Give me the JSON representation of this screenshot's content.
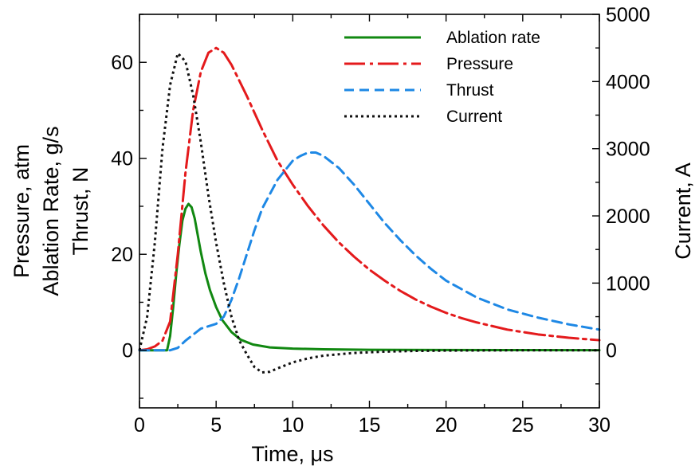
{
  "chart_data": {
    "type": "line",
    "title": "",
    "xlabel": "Time, μs",
    "ylabel_left": [
      "Pressure, atm",
      "Ablation Rate, g/s",
      "Thrust, N"
    ],
    "ylabel_right": "Current, A",
    "xlim": [
      0,
      30
    ],
    "ylim_left": [
      -12,
      70
    ],
    "ylim_right": [
      -857,
      5000
    ],
    "x_ticks": [
      "0",
      "5",
      "10",
      "15",
      "20",
      "25",
      "30"
    ],
    "y_left_ticks": [
      "0",
      "20",
      "40",
      "60"
    ],
    "y_right_ticks": [
      "0",
      "1000",
      "2000",
      "3000",
      "4000",
      "5000"
    ],
    "grid": false,
    "legend_position": "top-right",
    "series": [
      {
        "name": "Ablation rate",
        "axis": "left",
        "color": "#118811",
        "style": "solid",
        "x": [
          0,
          1.8,
          2.0,
          2.2,
          2.4,
          2.6,
          2.8,
          3.0,
          3.2,
          3.4,
          3.6,
          3.8,
          4.0,
          4.3,
          4.6,
          5.0,
          5.4,
          6.0,
          6.6,
          7.4,
          8.5,
          10,
          12,
          15,
          20,
          25,
          30
        ],
        "y": [
          0,
          0,
          3,
          9,
          16,
          22,
          27,
          29.5,
          30.5,
          29.8,
          27.5,
          24,
          20.5,
          16,
          12.5,
          9,
          6.3,
          3.8,
          2.2,
          1.2,
          0.6,
          0.35,
          0.2,
          0.1,
          0.05,
          0.03,
          0.02
        ]
      },
      {
        "name": "Pressure",
        "axis": "left",
        "color": "#e41a1c",
        "style": "dash-dot",
        "x": [
          0,
          0.5,
          1.0,
          1.5,
          2.0,
          2.5,
          3.0,
          3.5,
          4.0,
          4.5,
          5.0,
          5.5,
          6.0,
          7.0,
          8.0,
          9.0,
          10.0,
          11.0,
          12.0,
          13.0,
          14.0,
          15.0,
          16.0,
          17.0,
          18.0,
          19.0,
          20.0,
          21.0,
          22.0,
          24.0,
          26.0,
          28.0,
          30.0
        ],
        "y": [
          0,
          0.2,
          0.8,
          2,
          6,
          20,
          37,
          50,
          58,
          62,
          63,
          62,
          59.5,
          53,
          46,
          39.5,
          34.5,
          30,
          26,
          22.5,
          19.5,
          16.8,
          14.5,
          12.4,
          10.6,
          9.1,
          7.8,
          6.7,
          5.8,
          4.3,
          3.3,
          2.6,
          2.1
        ]
      },
      {
        "name": "Thrust",
        "axis": "left",
        "color": "#1e88e5",
        "style": "dash",
        "x": [
          0,
          2.0,
          2.5,
          3.0,
          4.0,
          5.0,
          5.5,
          6.0,
          6.5,
          7.0,
          7.5,
          8.0,
          9.0,
          10.0,
          10.5,
          11.0,
          11.5,
          12.0,
          13.0,
          14.0,
          15.0,
          16.0,
          17.0,
          18.0,
          19.0,
          20.0,
          22.0,
          24.0,
          26.0,
          28.0,
          30.0
        ],
        "y": [
          0,
          0,
          0.5,
          2,
          4.5,
          5.5,
          7,
          10.5,
          15,
          20,
          25,
          29.5,
          35.5,
          39.5,
          40.5,
          41.2,
          41.2,
          40.5,
          38,
          34.5,
          30.5,
          26.5,
          23,
          19.8,
          17,
          14.5,
          11,
          8.5,
          6.8,
          5.4,
          4.3
        ]
      },
      {
        "name": "Current",
        "axis": "right",
        "color": "#111111",
        "style": "dot",
        "x": [
          0,
          0.5,
          1.0,
          1.5,
          2.0,
          2.5,
          3.0,
          3.5,
          4.0,
          4.5,
          5.0,
          5.5,
          6.0,
          6.5,
          7.0,
          7.5,
          8.0,
          8.5,
          9.0,
          10.0,
          11.0,
          12.0,
          14.0,
          16.0,
          18.0,
          20.0,
          25.0,
          30.0
        ],
        "y": [
          0,
          500,
          1600,
          3000,
          3950,
          4420,
          4300,
          3800,
          3100,
          2300,
          1600,
          1000,
          500,
          150,
          -60,
          -250,
          -330,
          -320,
          -270,
          -180,
          -120,
          -80,
          -40,
          -20,
          -10,
          -5,
          0,
          0
        ]
      }
    ]
  }
}
